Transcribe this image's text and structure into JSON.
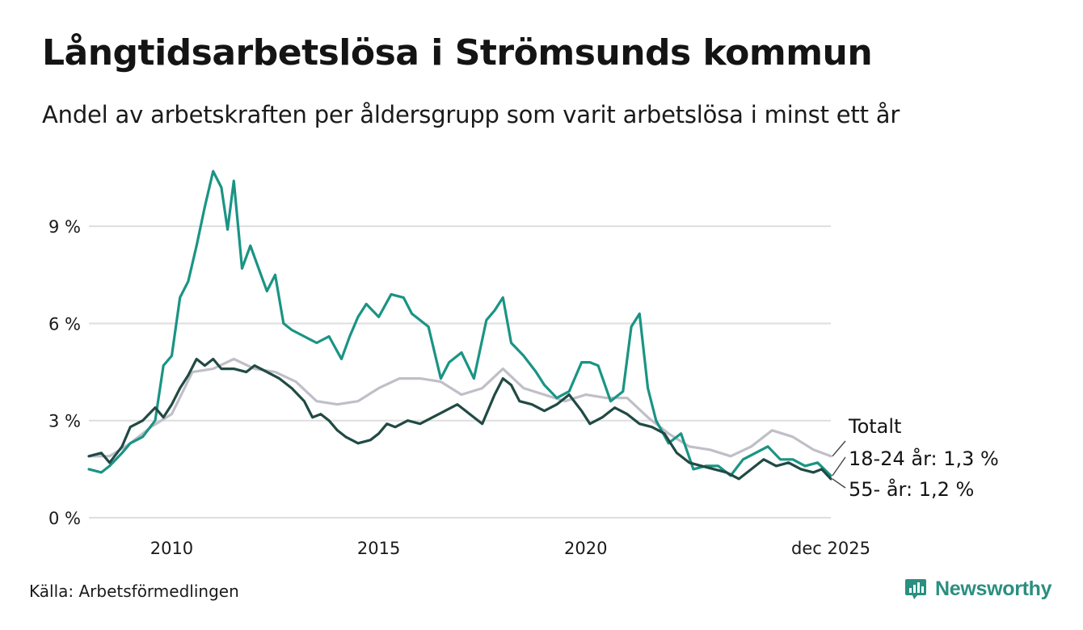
{
  "title": "Långtidsarbetslösa i Strömsunds kommun",
  "subtitle": "Andel av arbetskraften per åldersgrupp som varit arbetslösa i minst ett år",
  "source": "Källa: Arbetsförmedlingen",
  "brand": "Newsworthy",
  "colors": {
    "totalt": "#c0bfc8",
    "age18_24": "#1a9484",
    "age55": "#214a44",
    "grid": "#dedede",
    "brand": "#2a8f80"
  },
  "chart_data": {
    "type": "line",
    "title": "Långtidsarbetslösa i Strömsunds kommun",
    "xlabel": "",
    "ylabel": "",
    "xlim": [
      2008.0,
      2025.92
    ],
    "ylim": [
      0,
      10.8
    ],
    "yticks": [
      0,
      3,
      6,
      9
    ],
    "ytick_labels": [
      "0 %",
      "3 %",
      "6 %",
      "9 %"
    ],
    "xticks": [
      2010,
      2015,
      2020,
      2025.92
    ],
    "xtick_labels": [
      "2010",
      "2015",
      "2020",
      "dec 2025"
    ],
    "grid": true,
    "series": [
      {
        "name": "Totalt",
        "label": "Totalt",
        "color_key": "totalt",
        "x": [
          2008.0,
          2008.5,
          2009.0,
          2009.5,
          2010.0,
          2010.5,
          2011.0,
          2011.5,
          2012.0,
          2012.5,
          2013.0,
          2013.5,
          2014.0,
          2014.5,
          2015.0,
          2015.5,
          2016.0,
          2016.5,
          2017.0,
          2017.5,
          2018.0,
          2018.5,
          2019.0,
          2019.5,
          2020.0,
          2020.5,
          2021.0,
          2021.5,
          2022.0,
          2022.5,
          2023.0,
          2023.5,
          2024.0,
          2024.5,
          2025.0,
          2025.5,
          2025.92
        ],
        "y": [
          1.9,
          1.9,
          2.3,
          2.8,
          3.2,
          4.5,
          4.6,
          4.9,
          4.6,
          4.5,
          4.2,
          3.6,
          3.5,
          3.6,
          4.0,
          4.3,
          4.3,
          4.2,
          3.8,
          4.0,
          4.6,
          4.0,
          3.8,
          3.6,
          3.8,
          3.7,
          3.7,
          3.1,
          2.6,
          2.2,
          2.1,
          1.9,
          2.2,
          2.7,
          2.5,
          2.1,
          1.9
        ]
      },
      {
        "name": "18-24 år",
        "label": "18-24 år: 1,3 %",
        "color_key": "age18_24",
        "x": [
          2008.0,
          2008.3,
          2008.5,
          2008.8,
          2009.0,
          2009.3,
          2009.6,
          2009.8,
          2010.0,
          2010.2,
          2010.4,
          2010.6,
          2010.8,
          2011.0,
          2011.2,
          2011.35,
          2011.5,
          2011.7,
          2011.9,
          2012.1,
          2012.3,
          2012.5,
          2012.7,
          2012.9,
          2013.2,
          2013.5,
          2013.8,
          2014.1,
          2014.3,
          2014.5,
          2014.7,
          2015.0,
          2015.3,
          2015.6,
          2015.8,
          2016.0,
          2016.2,
          2016.5,
          2016.7,
          2017.0,
          2017.3,
          2017.6,
          2017.8,
          2018.0,
          2018.2,
          2018.5,
          2018.8,
          2019.0,
          2019.3,
          2019.6,
          2019.9,
          2020.1,
          2020.3,
          2020.6,
          2020.9,
          2021.1,
          2021.3,
          2021.5,
          2021.7,
          2022.0,
          2022.3,
          2022.6,
          2022.9,
          2023.2,
          2023.5,
          2023.8,
          2024.1,
          2024.4,
          2024.7,
          2025.0,
          2025.3,
          2025.6,
          2025.92
        ],
        "y": [
          1.5,
          1.4,
          1.6,
          2.0,
          2.3,
          2.5,
          3.0,
          4.7,
          5.0,
          6.8,
          7.3,
          8.4,
          9.6,
          10.7,
          10.2,
          8.9,
          10.4,
          7.7,
          8.4,
          7.7,
          7.0,
          7.5,
          6.0,
          5.8,
          5.6,
          5.4,
          5.6,
          4.9,
          5.6,
          6.2,
          6.6,
          6.2,
          6.9,
          6.8,
          6.3,
          6.1,
          5.9,
          4.3,
          4.8,
          5.1,
          4.3,
          6.1,
          6.4,
          6.8,
          5.4,
          5.0,
          4.5,
          4.1,
          3.7,
          3.9,
          4.8,
          4.8,
          4.7,
          3.6,
          3.9,
          5.9,
          6.3,
          4.0,
          3.0,
          2.3,
          2.6,
          1.5,
          1.6,
          1.6,
          1.3,
          1.8,
          2.0,
          2.2,
          1.8,
          1.8,
          1.6,
          1.7,
          1.3
        ]
      },
      {
        "name": "55- år",
        "label": "55- år: 1,2 %",
        "color_key": "age55",
        "x": [
          2008.0,
          2008.3,
          2008.5,
          2008.8,
          2009.0,
          2009.3,
          2009.6,
          2009.8,
          2010.0,
          2010.2,
          2010.4,
          2010.6,
          2010.8,
          2011.0,
          2011.2,
          2011.5,
          2011.8,
          2012.0,
          2012.3,
          2012.6,
          2012.9,
          2013.2,
          2013.4,
          2013.6,
          2013.8,
          2014.0,
          2014.2,
          2014.5,
          2014.8,
          2015.0,
          2015.2,
          2015.4,
          2015.7,
          2016.0,
          2016.3,
          2016.6,
          2016.9,
          2017.2,
          2017.5,
          2017.8,
          2018.0,
          2018.2,
          2018.4,
          2018.7,
          2019.0,
          2019.3,
          2019.6,
          2019.9,
          2020.1,
          2020.4,
          2020.7,
          2021.0,
          2021.3,
          2021.6,
          2021.9,
          2022.2,
          2022.5,
          2022.8,
          2023.1,
          2023.4,
          2023.7,
          2024.0,
          2024.3,
          2024.6,
          2024.9,
          2025.2,
          2025.5,
          2025.7,
          2025.92
        ],
        "y": [
          1.9,
          2.0,
          1.7,
          2.2,
          2.8,
          3.0,
          3.4,
          3.1,
          3.5,
          4.0,
          4.4,
          4.9,
          4.7,
          4.9,
          4.6,
          4.6,
          4.5,
          4.7,
          4.5,
          4.3,
          4.0,
          3.6,
          3.1,
          3.2,
          3.0,
          2.7,
          2.5,
          2.3,
          2.4,
          2.6,
          2.9,
          2.8,
          3.0,
          2.9,
          3.1,
          3.3,
          3.5,
          3.2,
          2.9,
          3.8,
          4.3,
          4.1,
          3.6,
          3.5,
          3.3,
          3.5,
          3.8,
          3.3,
          2.9,
          3.1,
          3.4,
          3.2,
          2.9,
          2.8,
          2.6,
          2.0,
          1.7,
          1.6,
          1.5,
          1.4,
          1.2,
          1.5,
          1.8,
          1.6,
          1.7,
          1.5,
          1.4,
          1.5,
          1.2
        ]
      }
    ]
  }
}
